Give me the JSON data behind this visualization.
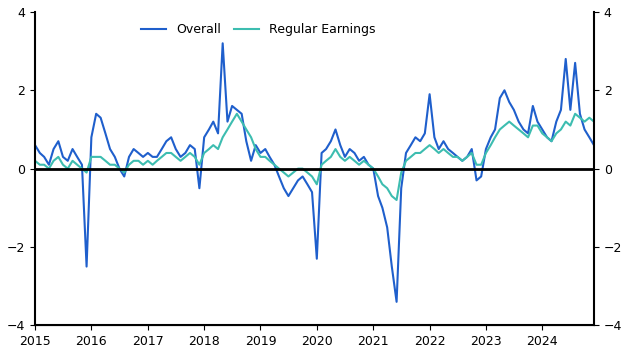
{
  "overall_color": "#1f5fcc",
  "regular_color": "#3dbdb0",
  "ylim": [
    -4,
    4
  ],
  "yticks": [
    -4,
    -2,
    0,
    2,
    4
  ],
  "legend_labels": [
    "Overall",
    "Regular Earnings"
  ],
  "overall": [
    0.6,
    0.4,
    0.3,
    0.1,
    0.5,
    0.7,
    0.3,
    0.2,
    0.5,
    0.3,
    0.1,
    -2.5,
    0.8,
    1.4,
    1.3,
    0.9,
    0.5,
    0.3,
    0.0,
    -0.2,
    0.3,
    0.5,
    0.4,
    0.3,
    0.4,
    0.3,
    0.3,
    0.5,
    0.7,
    0.8,
    0.5,
    0.3,
    0.4,
    0.6,
    0.5,
    -0.5,
    0.8,
    1.0,
    1.2,
    0.9,
    3.2,
    1.2,
    1.6,
    1.5,
    1.4,
    0.7,
    0.2,
    0.6,
    0.4,
    0.5,
    0.3,
    0.1,
    -0.2,
    -0.5,
    -0.7,
    -0.5,
    -0.3,
    -0.2,
    -0.4,
    -0.6,
    -2.3,
    0.4,
    0.5,
    0.7,
    1.0,
    0.6,
    0.3,
    0.5,
    0.4,
    0.2,
    0.3,
    0.1,
    0.0,
    -0.7,
    -1.0,
    -1.5,
    -2.5,
    -3.4,
    -0.5,
    0.4,
    0.6,
    0.8,
    0.7,
    0.9,
    1.9,
    0.8,
    0.5,
    0.7,
    0.5,
    0.4,
    0.3,
    0.2,
    0.3,
    0.5,
    -0.3,
    -0.2,
    0.5,
    0.8,
    1.0,
    1.8,
    2.0,
    1.7,
    1.5,
    1.2,
    1.0,
    0.9,
    1.6,
    1.2,
    1.0,
    0.8,
    0.7,
    1.2,
    1.5,
    2.8,
    1.5,
    2.7,
    1.4,
    1.0,
    0.8,
    0.6
  ],
  "regular": [
    0.2,
    0.1,
    0.1,
    0.0,
    0.2,
    0.3,
    0.1,
    0.0,
    0.2,
    0.1,
    0.0,
    -0.1,
    0.3,
    0.3,
    0.3,
    0.2,
    0.1,
    0.1,
    0.0,
    -0.1,
    0.1,
    0.2,
    0.2,
    0.1,
    0.2,
    0.1,
    0.2,
    0.3,
    0.4,
    0.4,
    0.3,
    0.2,
    0.3,
    0.4,
    0.3,
    0.1,
    0.4,
    0.5,
    0.6,
    0.5,
    0.8,
    1.0,
    1.2,
    1.4,
    1.2,
    1.0,
    0.8,
    0.5,
    0.3,
    0.3,
    0.2,
    0.1,
    0.0,
    -0.1,
    -0.2,
    -0.1,
    0.0,
    0.0,
    -0.1,
    -0.2,
    -0.4,
    0.1,
    0.2,
    0.3,
    0.5,
    0.3,
    0.2,
    0.3,
    0.2,
    0.1,
    0.2,
    0.1,
    0.0,
    -0.2,
    -0.4,
    -0.5,
    -0.7,
    -0.8,
    -0.1,
    0.2,
    0.3,
    0.4,
    0.4,
    0.5,
    0.6,
    0.5,
    0.4,
    0.5,
    0.4,
    0.3,
    0.3,
    0.2,
    0.3,
    0.4,
    0.1,
    0.1,
    0.4,
    0.6,
    0.8,
    1.0,
    1.1,
    1.2,
    1.1,
    1.0,
    0.9,
    0.8,
    1.1,
    1.1,
    0.9,
    0.8,
    0.7,
    0.9,
    1.0,
    1.2,
    1.1,
    1.4,
    1.3,
    1.2,
    1.3,
    1.2
  ],
  "start_year": 2015,
  "n_months": 120
}
